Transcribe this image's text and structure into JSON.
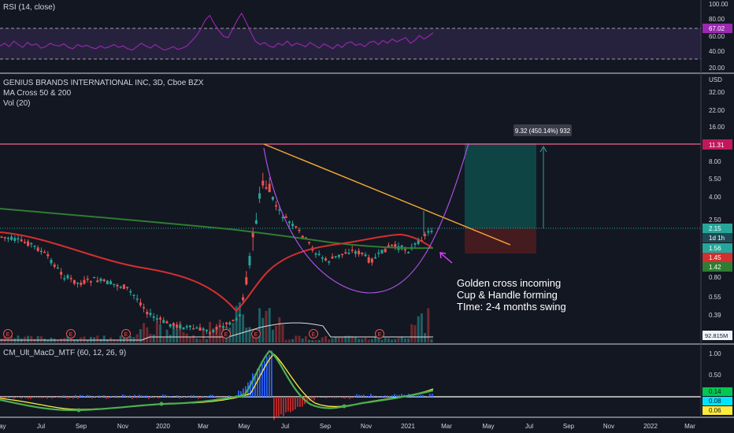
{
  "rsi_panel": {
    "title": "RSI (14, close)",
    "current": "67.02",
    "scale": [
      "100.00",
      "80.00",
      "60.00",
      "40.00",
      "20.00"
    ],
    "overbought": 70,
    "oversold": 30,
    "values": [
      48,
      52,
      47,
      55,
      50,
      46,
      53,
      49,
      51,
      45,
      47,
      52,
      49,
      48,
      51,
      46,
      44,
      50,
      47,
      49,
      46,
      44,
      48,
      45,
      47,
      50,
      46,
      48,
      44,
      42,
      47,
      52,
      48,
      45,
      50,
      46,
      42,
      44,
      47,
      43,
      45,
      48,
      55,
      62,
      72,
      85,
      92,
      80,
      70,
      62,
      60,
      72,
      85,
      95,
      82,
      68,
      55,
      50,
      53,
      48,
      46,
      52,
      49,
      55,
      48,
      52,
      50,
      47,
      53,
      49,
      45,
      51,
      48,
      44,
      50,
      46,
      52,
      54,
      49,
      51,
      47,
      53,
      55,
      50,
      56,
      52,
      58,
      54,
      57,
      60,
      52,
      56,
      63,
      58,
      62,
      67
    ]
  },
  "main_panel": {
    "title": "GENIUS BRANDS INTERNATIONAL INC, 3D, Cboe BZX",
    "indicator1": "MA Cross 50 & 200",
    "indicator2": "Vol (20)",
    "currency": "USD",
    "scale": [
      "32.00",
      "22.00",
      "16.00",
      "11.31",
      "8.00",
      "5.50",
      "4.00",
      "2.50",
      "2.15",
      "1d 1h",
      "1.56",
      "1.45",
      "1.42",
      "0.80",
      "0.55",
      "0.39",
      "92.815M"
    ],
    "resistance_label": "11.31",
    "price_label": "2.15",
    "countdown": "1d 1h",
    "ma_fast_label": "1.56",
    "ma_red_label": "1.45",
    "ma_green_label": "1.42",
    "volume_label": "92.815M",
    "measure_label": "9.32 (450.14%) 932",
    "earnings_marker": "E",
    "annotation": {
      "line1": "Golden cross incoming",
      "line2": "Cup & Handle forming",
      "line3": "TIme: 2-4 months swing"
    }
  },
  "macd_panel": {
    "title": "CM_Ult_MacD_MTF (60, 12, 26, 9)",
    "scale": [
      "1.00",
      "0.50",
      "0.14",
      "0.08",
      "0.06"
    ]
  },
  "time_axis": {
    "labels": [
      "May",
      "Jul",
      "Sep",
      "Nov",
      "2020",
      "Mar",
      "May",
      "Jul",
      "Sep",
      "Nov",
      "2021",
      "Mar",
      "May",
      "Jul",
      "Sep",
      "Nov",
      "2022",
      "Mar"
    ]
  },
  "colors": {
    "background": "#131722",
    "bull": "#26a69a",
    "bear": "#ef5350",
    "rsi_line": "#9c27b0",
    "ma_fast": "#d32f2f",
    "ma_slow": "#2e7d32",
    "trendline": "#f6a935",
    "cup": "#b455f0",
    "resistance": "#f06292",
    "target_zone": "#0e4d4a",
    "stop_zone": "#4a1c1f"
  }
}
